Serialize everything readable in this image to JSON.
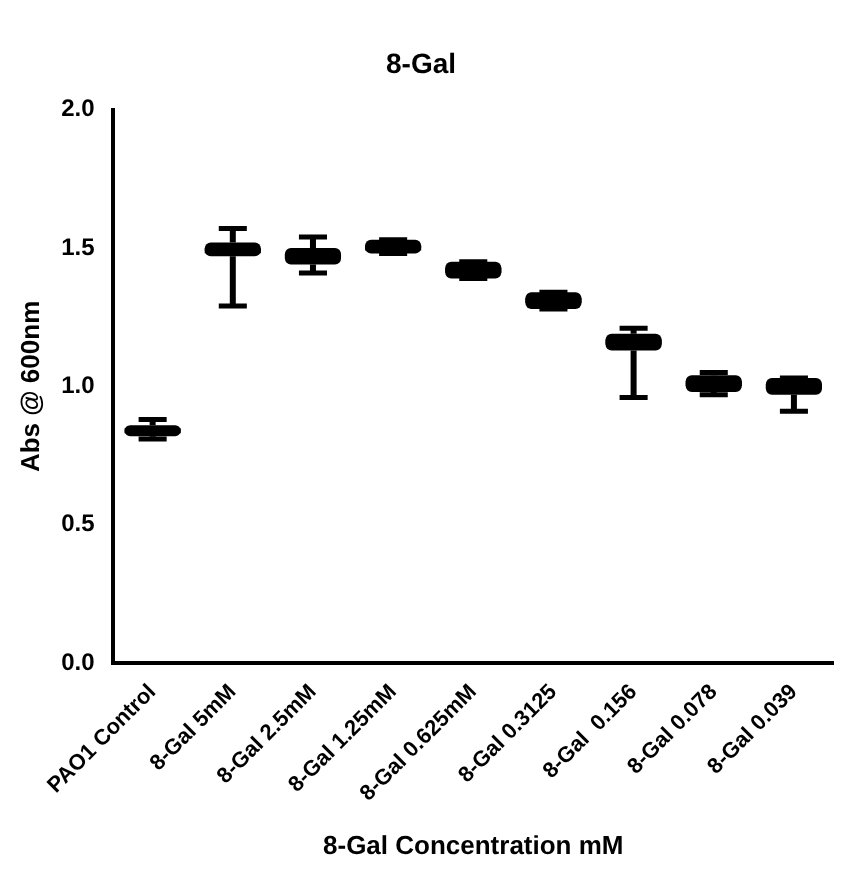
{
  "chart_data": {
    "type": "box",
    "title": "8-Gal",
    "xlabel": "8-Gal Concentration mM",
    "ylabel": "Abs @ 600nm",
    "categories": [
      "PAO1 Control",
      "8-Gal 5mM",
      "8-Gal 2.5mM",
      "8-Gal 1.25mM",
      "8-Gal 0.625mM",
      "8-Gal 0.3125",
      "8-Gal  0.156",
      "8-Gal 0.078",
      "8-Gal 0.039"
    ],
    "boxes": [
      {
        "low": 0.81,
        "q1": 0.82,
        "median": 0.84,
        "q3": 0.86,
        "high": 0.88
      },
      {
        "low": 1.29,
        "q1": 1.47,
        "median": 1.49,
        "q3": 1.52,
        "high": 1.57
      },
      {
        "low": 1.41,
        "q1": 1.44,
        "median": 1.47,
        "q3": 1.5,
        "high": 1.54
      },
      {
        "low": 1.48,
        "q1": 1.48,
        "median": 1.5,
        "q3": 1.53,
        "high": 1.53
      },
      {
        "low": 1.39,
        "q1": 1.39,
        "median": 1.42,
        "q3": 1.45,
        "high": 1.45
      },
      {
        "low": 1.28,
        "q1": 1.28,
        "median": 1.31,
        "q3": 1.34,
        "high": 1.34
      },
      {
        "low": 0.96,
        "q1": 1.13,
        "median": 1.16,
        "q3": 1.19,
        "high": 1.21
      },
      {
        "low": 0.97,
        "q1": 0.98,
        "median": 1.01,
        "q3": 1.04,
        "high": 1.05
      },
      {
        "low": 0.91,
        "q1": 0.97,
        "median": 1.0,
        "q3": 1.03,
        "high": 1.03
      }
    ],
    "color": "#000000",
    "ylim": [
      0,
      2
    ],
    "yticks": [
      {
        "value": 0,
        "label": "0.0"
      },
      {
        "value": 0.5,
        "label": "0.5"
      },
      {
        "value": 1,
        "label": "1.0"
      },
      {
        "value": 1.5,
        "label": "1.5"
      },
      {
        "value": 2,
        "label": "2.0"
      }
    ],
    "grid": false,
    "legend": false
  }
}
